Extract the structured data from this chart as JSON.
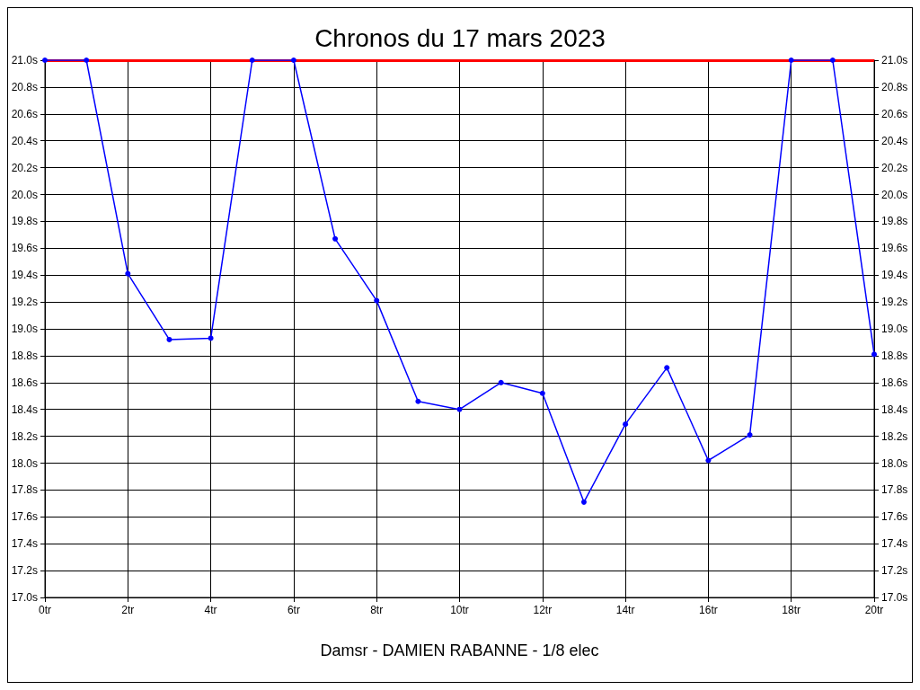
{
  "chart_data": {
    "type": "line",
    "title": "Chronos du 17 mars 2023",
    "xlabel": "Damsr - DAMIEN RABANNE - 1/8 elec",
    "x": [
      0,
      1,
      2,
      3,
      4,
      5,
      6,
      7,
      8,
      9,
      10,
      11,
      12,
      13,
      14,
      15,
      16,
      17,
      18,
      19,
      20
    ],
    "series": [
      {
        "color": "#0000ff",
        "values": [
          21.0,
          21.0,
          19.41,
          18.92,
          18.93,
          21.0,
          21.0,
          19.67,
          19.21,
          18.46,
          18.4,
          18.6,
          18.52,
          17.71,
          18.29,
          18.71,
          18.02,
          18.21,
          21.0,
          21.0,
          18.81
        ]
      }
    ],
    "xlim": [
      0,
      20
    ],
    "xticks": [
      {
        "value": 0,
        "label": "0tr"
      },
      {
        "value": 2,
        "label": "2tr"
      },
      {
        "value": 4,
        "label": "4tr"
      },
      {
        "value": 6,
        "label": "6tr"
      },
      {
        "value": 8,
        "label": "8tr"
      },
      {
        "value": 10,
        "label": "10tr"
      },
      {
        "value": 12,
        "label": "12tr"
      },
      {
        "value": 14,
        "label": "14tr"
      },
      {
        "value": 16,
        "label": "16tr"
      },
      {
        "value": 18,
        "label": "18tr"
      },
      {
        "value": 20,
        "label": "20tr"
      }
    ],
    "ylim": [
      17.0,
      21.0
    ],
    "yticks": [
      {
        "value": 17.0,
        "label": "17.0s"
      },
      {
        "value": 17.2,
        "label": "17.2s"
      },
      {
        "value": 17.4,
        "label": "17.4s"
      },
      {
        "value": 17.6,
        "label": "17.6s"
      },
      {
        "value": 17.8,
        "label": "17.8s"
      },
      {
        "value": 18.0,
        "label": "18.0s"
      },
      {
        "value": 18.2,
        "label": "18.2s"
      },
      {
        "value": 18.4,
        "label": "18.4s"
      },
      {
        "value": 18.6,
        "label": "18.6s"
      },
      {
        "value": 18.8,
        "label": "18.8s"
      },
      {
        "value": 19.0,
        "label": "19.0s"
      },
      {
        "value": 19.2,
        "label": "19.2s"
      },
      {
        "value": 19.4,
        "label": "19.4s"
      },
      {
        "value": 19.6,
        "label": "19.6s"
      },
      {
        "value": 19.8,
        "label": "19.8s"
      },
      {
        "value": 20.0,
        "label": "20.0s"
      },
      {
        "value": 20.2,
        "label": "20.2s"
      },
      {
        "value": 20.4,
        "label": "20.4s"
      },
      {
        "value": 20.6,
        "label": "20.6s"
      },
      {
        "value": 20.8,
        "label": "20.8s"
      },
      {
        "value": 21.0,
        "label": "21.0s"
      }
    ],
    "y2lim": [
      17.0,
      21.0
    ],
    "y2ticks": [
      {
        "value": 17.0,
        "label": "17.0s"
      },
      {
        "value": 17.2,
        "label": "17.2s"
      },
      {
        "value": 17.4,
        "label": "17.4s"
      },
      {
        "value": 17.6,
        "label": "17.6s"
      },
      {
        "value": 17.8,
        "label": "17.8s"
      },
      {
        "value": 18.0,
        "label": "18.0s"
      },
      {
        "value": 18.2,
        "label": "18.2s"
      },
      {
        "value": 18.4,
        "label": "18.4s"
      },
      {
        "value": 18.6,
        "label": "18.6s"
      },
      {
        "value": 18.8,
        "label": "18.8s"
      },
      {
        "value": 19.0,
        "label": "19.0s"
      },
      {
        "value": 19.2,
        "label": "19.2s"
      },
      {
        "value": 19.4,
        "label": "19.4s"
      },
      {
        "value": 19.6,
        "label": "19.6s"
      },
      {
        "value": 19.8,
        "label": "19.8s"
      },
      {
        "value": 20.0,
        "label": "20.0s"
      },
      {
        "value": 20.2,
        "label": "20.2s"
      },
      {
        "value": 20.4,
        "label": "20.4s"
      },
      {
        "value": 20.6,
        "label": "20.6s"
      },
      {
        "value": 20.8,
        "label": "20.8s"
      },
      {
        "value": 21.0,
        "label": "21.0s"
      }
    ],
    "ref_lines": [
      {
        "axis": "y",
        "value": 21.0,
        "color": "#ff0000"
      }
    ],
    "grid": true,
    "marker": "circle",
    "line_style": "solid"
  }
}
